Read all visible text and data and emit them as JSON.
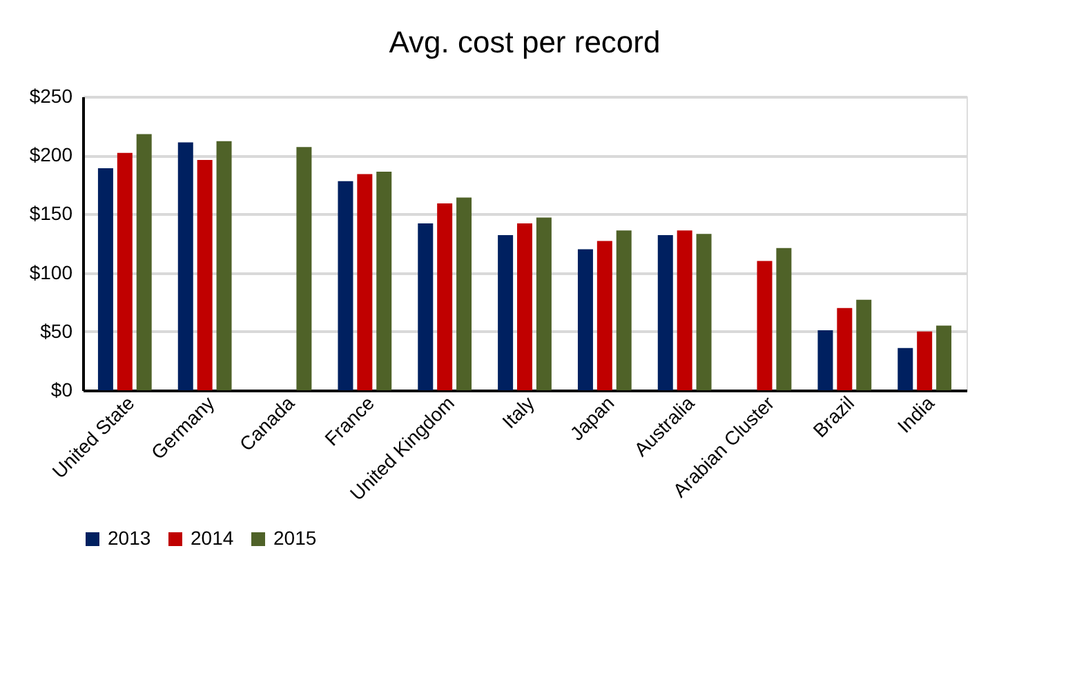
{
  "chart_data": {
    "type": "bar",
    "title": "Avg. cost per record",
    "categories": [
      "United State",
      "Germany",
      "Canada",
      "France",
      "United Kingdom",
      "Italy",
      "Japan",
      "Australia",
      "Arabian Cluster",
      "Brazil",
      "India"
    ],
    "series": [
      {
        "name": "2013",
        "color": "#002060",
        "values": [
          189,
          211,
          null,
          178,
          142,
          132,
          120,
          132,
          null,
          51,
          36
        ]
      },
      {
        "name": "2014",
        "color": "#c00000",
        "values": [
          202,
          196,
          null,
          184,
          159,
          142,
          127,
          136,
          110,
          70,
          50
        ]
      },
      {
        "name": "2015",
        "color": "#4f6228",
        "values": [
          218,
          212,
          207,
          186,
          164,
          147,
          136,
          133,
          121,
          77,
          55
        ]
      }
    ],
    "ylim": [
      0,
      250
    ],
    "yticks": [
      {
        "value": 0,
        "label": "$0"
      },
      {
        "value": 50,
        "label": "$50"
      },
      {
        "value": 100,
        "label": "$100"
      },
      {
        "value": 150,
        "label": "$150"
      },
      {
        "value": 200,
        "label": "$200"
      },
      {
        "value": 250,
        "label": "$250"
      }
    ],
    "grid": "y",
    "legend": "bottom"
  }
}
